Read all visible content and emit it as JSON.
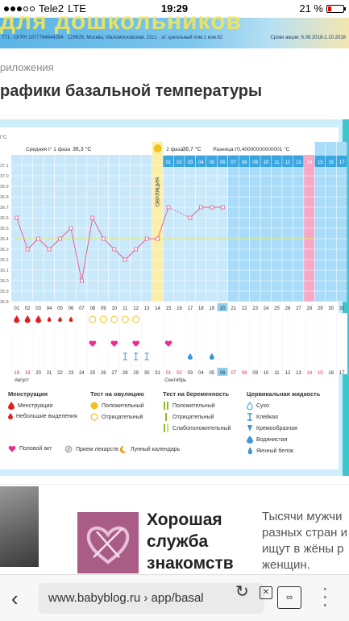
{
  "status": {
    "carrier": "Tele2",
    "network": "LTE",
    "time": "19:29",
    "battery": "21 %"
  },
  "banner": {
    "headline": "для дошкольников",
    "info_left": "771 · ОГРН 1077764644264 · 129626, Москва, Маломосковская, 22с1 · эт. цокольный пом.1 ком.62",
    "info_right": "Сроки акции: 6.08.2018-1.10.2018"
  },
  "breadcrumb": "риложения",
  "page_title": "рафики базальной температуры",
  "chart_data": {
    "type": "line",
    "y_unit": "t°C",
    "y_ticks": [
      "37.1",
      "37.0",
      "36.9",
      "36.8",
      "36.7",
      "36.6",
      "36.5",
      "36.4",
      "36.3",
      "36.2",
      "36.1",
      "36.0",
      "35.9",
      "35.8"
    ],
    "ylim": [
      35.8,
      37.2
    ],
    "phase1_label": "Средняя t° 1 фаза",
    "phase1_avg": "36,3 °C",
    "ovulation_label": "ОВУЛЯЦИЯ",
    "phase2_label": "2 фаза",
    "phase2_avg": "36,7 °C",
    "diff_label": "Разница t°",
    "diff_value": "0,40000000000001 °C",
    "cover_line": 36.4,
    "cycle_days": [
      "01",
      "02",
      "03",
      "04",
      "05",
      "06",
      "07",
      "08",
      "09",
      "10",
      "11",
      "12",
      "13",
      "14",
      "15",
      "16",
      "17",
      "18",
      "19",
      "20",
      "21",
      "22",
      "23",
      "24",
      "25",
      "26",
      "27",
      "28",
      "29",
      "30",
      "31"
    ],
    "phase2_days": [
      "01",
      "02",
      "03",
      "04",
      "05",
      "06",
      "07",
      "08",
      "09",
      "10",
      "11",
      "12",
      "13",
      "14",
      "15",
      "16",
      "17"
    ],
    "temps": [
      36.6,
      36.3,
      36.4,
      36.3,
      36.4,
      36.5,
      36.0,
      36.6,
      36.4,
      36.3,
      36.2,
      36.3,
      36.4,
      36.4,
      36.7,
      null,
      36.6,
      36.7,
      36.7,
      36.7
    ],
    "dates": [
      "18",
      "19",
      "20",
      "21",
      "22",
      "23",
      "24",
      "25",
      "26",
      "27",
      "28",
      "29",
      "30",
      "31",
      "01",
      "02",
      "03",
      "04",
      "05",
      "06",
      "07",
      "08",
      "09",
      "10",
      "11",
      "12",
      "13",
      "14",
      "15",
      "16",
      "17"
    ],
    "month_left": "Август",
    "month_right": "Сентябрь",
    "colors": {
      "bar": "#c9e9fa",
      "blue_col": "#a9dcf8",
      "header": "#3aa6e0",
      "ovulation": "#fbeea6",
      "pink": "#f7a8c6",
      "line": "#e05a86",
      "cover": "#e5ec6a",
      "dot": "#333"
    }
  },
  "legend": {
    "menstruation_title": "Менструация",
    "menstruation": "Менструация",
    "spotting": "Небольшие выделения",
    "ov_test_title": "Тест на овуляцию",
    "ov_positive": "Положительный",
    "ov_negative": "Отрицательный",
    "preg_test_title": "Тест на беременность",
    "preg_positive": "Положительный",
    "preg_negative": "Отрицательный",
    "preg_weak": "Слабоположительный",
    "cervical_title": "Цервикальная жидкость",
    "cf_dry": "Сухо",
    "cf_sticky": "Клейкая",
    "cf_creamy": "Кремообразная",
    "cf_watery": "Водянистая",
    "cf_eggwhite": "Яичный белок",
    "intercourse": "Половой акт",
    "medication": "Прием лекарств",
    "lunar": "Лунный календарь"
  },
  "ad": {
    "headline_1": "Хорошая",
    "headline_2": "служба",
    "headline_3": "знакомств",
    "desc_1": "Тысячи мужчи",
    "desc_2": "разных стран и",
    "desc_3": "ищут в жёны р",
    "desc_4": "женщин."
  },
  "browser": {
    "url": "www.babyblog.ru › app/basal",
    "tabs_count": "∞"
  }
}
